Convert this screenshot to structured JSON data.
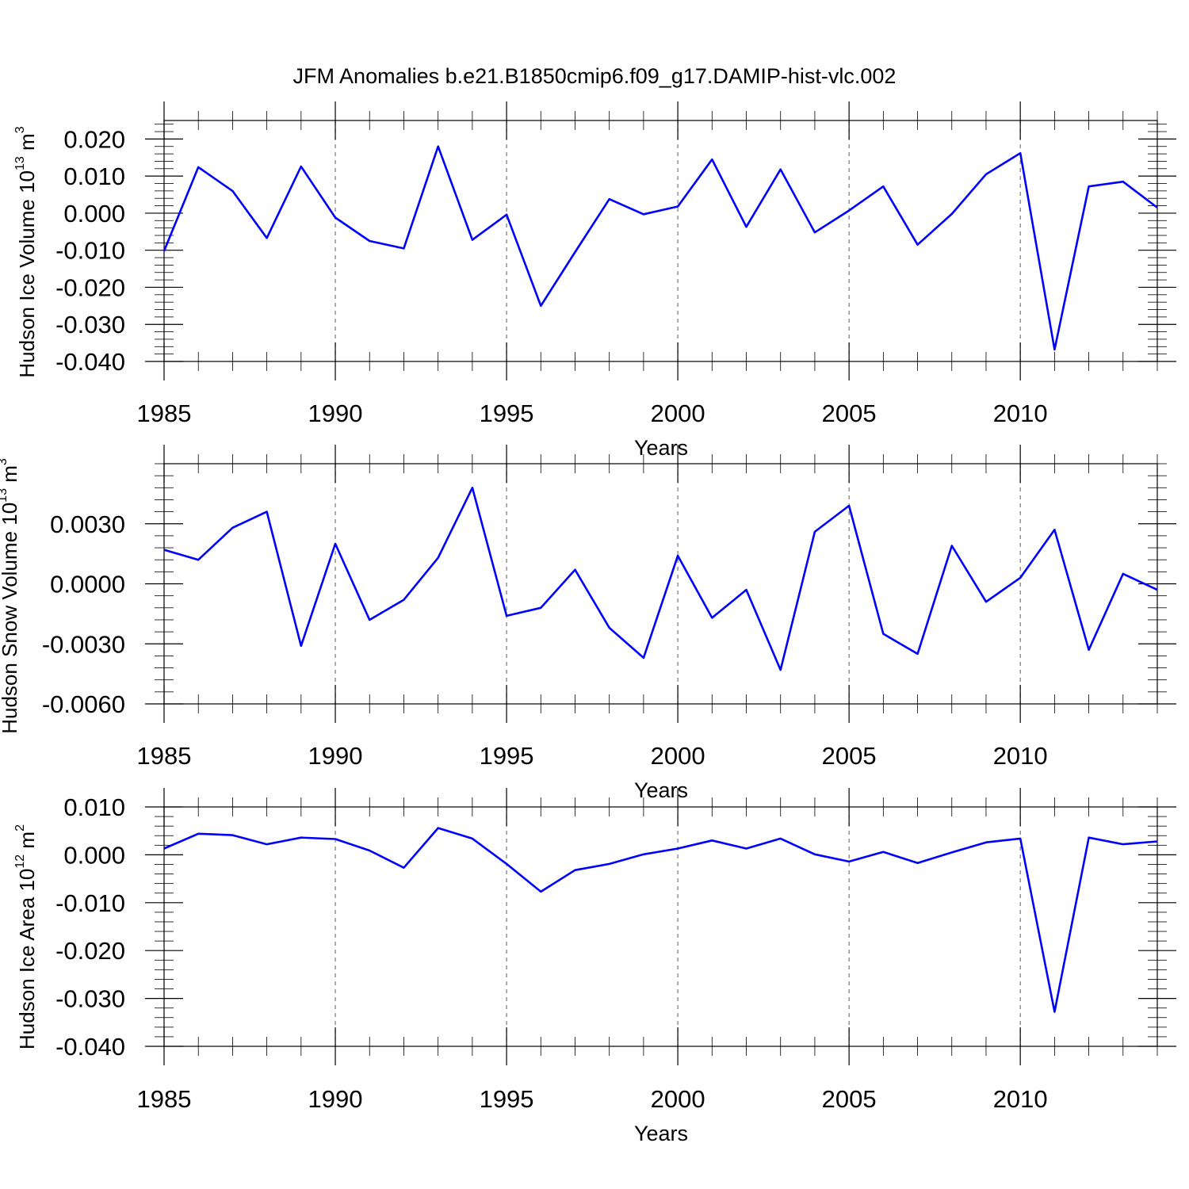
{
  "title": "JFM Anomalies b.e21.B1850cmip6.f09_g17.DAMIP-hist-vlc.002",
  "colors": {
    "line": "#0000ff",
    "grid": "#777777",
    "axis": "#000000"
  },
  "chart_data": [
    {
      "type": "line",
      "ylabel": "Hudson Ice Volume 10",
      "ylabel_exp": "13",
      "ylabel_unit": " m",
      "ylabel_unit_exp": "3",
      "xlabel": "Years",
      "xlim": [
        1985,
        2014
      ],
      "ylim": [
        -0.04,
        0.025
      ],
      "x_ticks": [
        "1985",
        "1990",
        "1995",
        "2000",
        "2005",
        "2010"
      ],
      "y_ticks": [
        {
          "v": 0.02,
          "label": "0.020"
        },
        {
          "v": 0.01,
          "label": "0.010"
        },
        {
          "v": 0.0,
          "label": "0.000"
        },
        {
          "v": -0.01,
          "label": "-0.010"
        },
        {
          "v": -0.02,
          "label": "-0.020"
        },
        {
          "v": -0.03,
          "label": "-0.030"
        },
        {
          "v": -0.04,
          "label": "-0.040"
        }
      ],
      "grid_x": [
        1990,
        1995,
        2000,
        2005,
        2010
      ],
      "x": [
        1985,
        1986,
        1987,
        1988,
        1989,
        1990,
        1991,
        1992,
        1993,
        1994,
        1995,
        1996,
        1997,
        1998,
        1999,
        2000,
        2001,
        2002,
        2003,
        2004,
        2005,
        2006,
        2007,
        2008,
        2009,
        2010,
        2011,
        2012,
        2013,
        2014
      ],
      "series": [
        {
          "values": [
            -0.0102,
            0.0124,
            0.006,
            -0.0067,
            0.0126,
            -0.0012,
            -0.0075,
            -0.0095,
            0.018,
            -0.0072,
            -0.0004,
            -0.025,
            -0.0105,
            0.0038,
            -0.0003,
            0.0018,
            0.0145,
            -0.0037,
            0.0118,
            -0.0052,
            0.0007,
            0.0072,
            -0.0085,
            -0.0002,
            0.0105,
            0.0162,
            -0.0368,
            0.0072,
            0.0085,
            0.0015
          ]
        }
      ]
    },
    {
      "type": "line",
      "ylabel": "Hudson Snow Volume 10",
      "ylabel_exp": "13",
      "ylabel_unit": " m",
      "ylabel_unit_exp": "3",
      "xlabel": "Years",
      "xlim": [
        1985,
        2014
      ],
      "ylim": [
        -0.006,
        0.006
      ],
      "x_ticks": [
        "1985",
        "1990",
        "1995",
        "2000",
        "2005",
        "2010"
      ],
      "y_ticks": [
        {
          "v": 0.003,
          "label": "0.0030"
        },
        {
          "v": 0.0,
          "label": "0.0000"
        },
        {
          "v": -0.003,
          "label": "-0.0030"
        },
        {
          "v": -0.006,
          "label": "-0.0060"
        }
      ],
      "grid_x": [
        1990,
        1995,
        2000,
        2005,
        2010
      ],
      "x": [
        1985,
        1986,
        1987,
        1988,
        1989,
        1990,
        1991,
        1992,
        1993,
        1994,
        1995,
        1996,
        1997,
        1998,
        1999,
        2000,
        2001,
        2002,
        2003,
        2004,
        2005,
        2006,
        2007,
        2008,
        2009,
        2010,
        2011,
        2012,
        2013,
        2014
      ],
      "series": [
        {
          "values": [
            0.0017,
            0.0012,
            0.0028,
            0.0036,
            -0.0031,
            0.002,
            -0.0018,
            -0.0008,
            0.0013,
            0.0048,
            -0.0016,
            -0.0012,
            0.0007,
            -0.0022,
            -0.0037,
            0.0014,
            -0.0017,
            -0.0003,
            -0.0043,
            0.0026,
            0.0039,
            -0.0025,
            -0.0035,
            0.0019,
            -0.0009,
            0.0003,
            0.0027,
            -0.0033,
            0.0005,
            -0.0003
          ]
        }
      ]
    },
    {
      "type": "line",
      "ylabel": "Hudson Ice Area 10",
      "ylabel_exp": "12",
      "ylabel_unit": " m",
      "ylabel_unit_exp": "2",
      "xlabel": "Years",
      "xlim": [
        1985,
        2014
      ],
      "ylim": [
        -0.04,
        0.01
      ],
      "x_ticks": [
        "1985",
        "1990",
        "1995",
        "2000",
        "2005",
        "2010"
      ],
      "y_ticks": [
        {
          "v": 0.01,
          "label": "0.010"
        },
        {
          "v": 0.0,
          "label": "0.000"
        },
        {
          "v": -0.01,
          "label": "-0.010"
        },
        {
          "v": -0.02,
          "label": "-0.020"
        },
        {
          "v": -0.03,
          "label": "-0.030"
        },
        {
          "v": -0.04,
          "label": "-0.040"
        }
      ],
      "grid_x": [
        1990,
        1995,
        2000,
        2005,
        2010
      ],
      "x": [
        1985,
        1986,
        1987,
        1988,
        1989,
        1990,
        1991,
        1992,
        1993,
        1994,
        1995,
        1996,
        1997,
        1998,
        1999,
        2000,
        2001,
        2002,
        2003,
        2004,
        2005,
        2006,
        2007,
        2008,
        2009,
        2010,
        2011,
        2012,
        2013,
        2014
      ],
      "series": [
        {
          "values": [
            0.0013,
            0.0044,
            0.0041,
            0.0022,
            0.0036,
            0.0033,
            0.0009,
            -0.0027,
            0.0056,
            0.0034,
            -0.0019,
            -0.0077,
            -0.0032,
            -0.0019,
            0.0001,
            0.0013,
            0.003,
            0.0013,
            0.0034,
            0.0001,
            -0.0014,
            0.0006,
            -0.0017,
            0.0005,
            0.0026,
            0.0034,
            -0.0328,
            0.0036,
            0.0022,
            0.0028
          ]
        }
      ]
    }
  ]
}
